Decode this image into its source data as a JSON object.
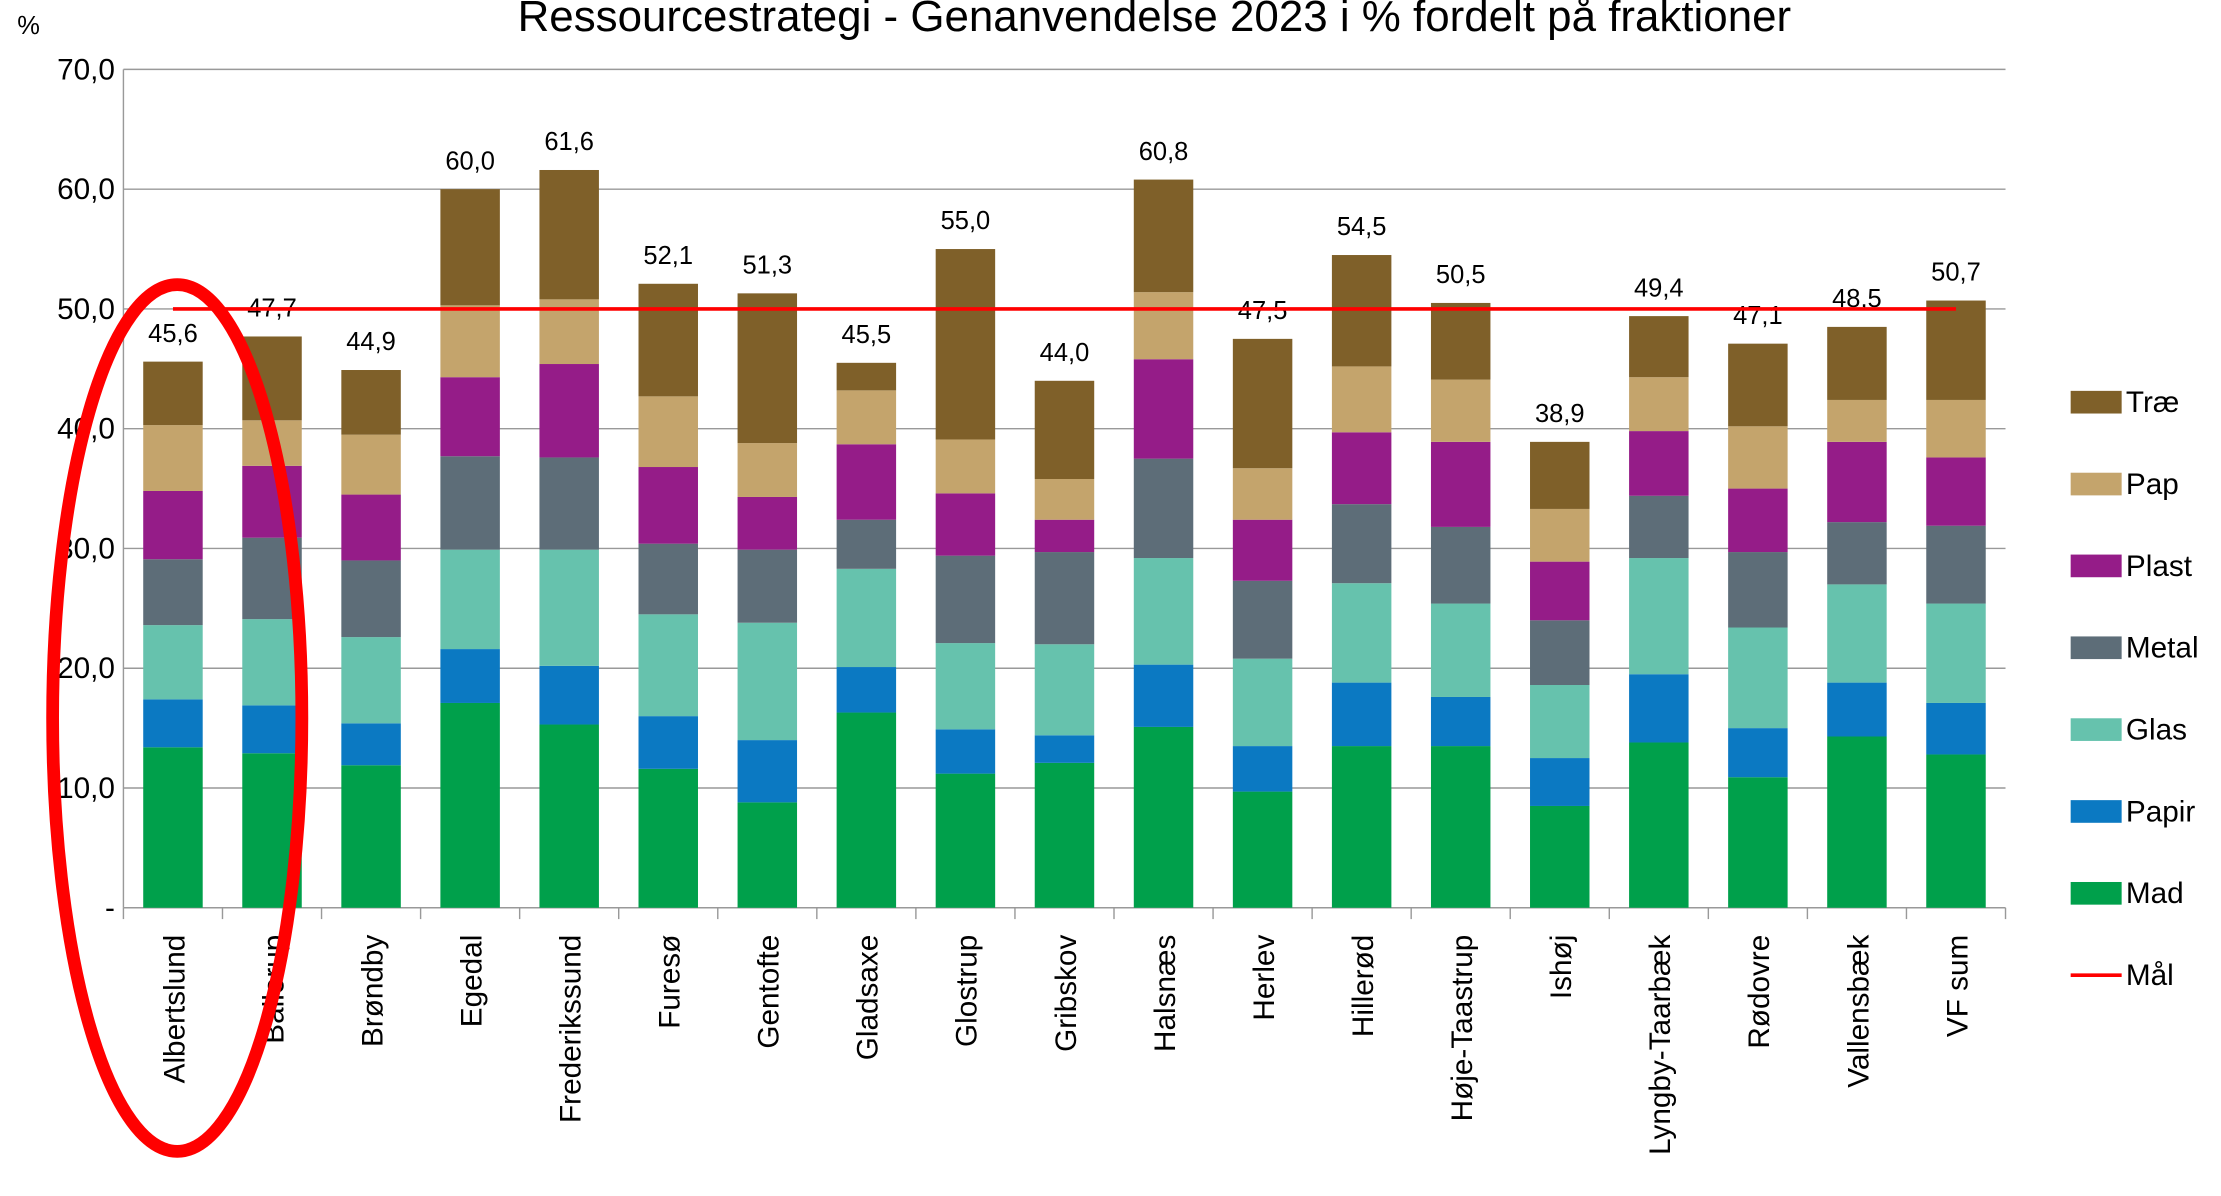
{
  "chart_data": {
    "type": "stacked-bar",
    "title": "Ressourcestrategi - Genanvendelse 2023 i % fordelt på fraktioner",
    "ylabel": "%",
    "categories": [
      "Albertslund",
      "Ballerup",
      "Brøndby",
      "Egedal",
      "Frederikssund",
      "Furesø",
      "Gentofte",
      "Gladsaxe",
      "Glostrup",
      "Gribskov",
      "Halsnæs",
      "Herlev",
      "Hillerød",
      "Høje-Taastrup",
      "Ishøj",
      "Lyngby-Taarbæk",
      "Rødovre",
      "Vallensbæk",
      "VF sum"
    ],
    "series": [
      {
        "name": "Mad",
        "color": "#00a04b",
        "values": [
          13.4,
          12.9,
          11.9,
          17.1,
          15.3,
          11.6,
          8.8,
          16.3,
          11.2,
          12.1,
          15.1,
          9.7,
          13.5,
          13.5,
          8.5,
          13.8,
          10.9,
          14.3,
          12.8
        ]
      },
      {
        "name": "Papir",
        "color": "#0b79c2",
        "values": [
          4.0,
          4.0,
          3.5,
          4.5,
          4.9,
          4.4,
          5.2,
          3.8,
          3.7,
          2.3,
          5.2,
          3.8,
          5.3,
          4.1,
          4.0,
          5.7,
          4.1,
          4.5,
          4.3
        ]
      },
      {
        "name": "Glas",
        "color": "#66c2ad",
        "values": [
          6.2,
          7.2,
          7.2,
          8.3,
          9.7,
          8.5,
          9.8,
          8.2,
          7.2,
          7.6,
          8.9,
          7.3,
          8.3,
          7.8,
          6.1,
          9.7,
          8.4,
          8.2,
          8.3
        ]
      },
      {
        "name": "Metal",
        "color": "#5d6d78",
        "values": [
          5.5,
          6.8,
          6.4,
          7.8,
          7.7,
          5.9,
          6.1,
          4.1,
          7.3,
          7.7,
          8.3,
          6.5,
          6.6,
          6.4,
          5.4,
          5.2,
          6.3,
          5.2,
          6.5
        ]
      },
      {
        "name": "Plast",
        "color": "#951c88",
        "values": [
          5.7,
          6.0,
          5.5,
          6.6,
          7.8,
          6.4,
          4.4,
          6.3,
          5.2,
          2.7,
          8.3,
          5.1,
          6.0,
          7.1,
          4.9,
          5.4,
          5.3,
          6.7,
          5.7
        ]
      },
      {
        "name": "Pap",
        "color": "#c4a46c",
        "values": [
          5.5,
          3.8,
          5.0,
          6.0,
          5.4,
          5.9,
          4.5,
          4.5,
          4.5,
          3.4,
          5.6,
          4.3,
          5.5,
          5.2,
          4.4,
          4.5,
          5.2,
          3.5,
          4.8
        ]
      },
      {
        "name": "Træ",
        "color": "#7f6029",
        "values": [
          5.3,
          7.0,
          5.4,
          9.7,
          10.8,
          9.4,
          12.5,
          2.3,
          15.9,
          8.2,
          9.4,
          10.8,
          9.3,
          6.4,
          5.6,
          5.1,
          6.9,
          6.1,
          8.3
        ]
      }
    ],
    "target": {
      "name": "Mål",
      "color": "#ff0000",
      "values": [
        50,
        50,
        50,
        50,
        50,
        50,
        50,
        50,
        50,
        50,
        50,
        50,
        50,
        50,
        50,
        50,
        50,
        50,
        50
      ]
    },
    "totals": [
      45.6,
      47.7,
      44.9,
      60.0,
      61.6,
      52.1,
      51.3,
      45.5,
      55.0,
      44.0,
      60.8,
      47.5,
      54.5,
      50.5,
      38.9,
      49.4,
      47.1,
      48.5,
      50.7
    ],
    "total_labels": [
      "45,6",
      "47,7",
      "44,9",
      "60,0",
      "61,6",
      "52,1",
      "51,3",
      "45,5",
      "55,0",
      "44,0",
      "60,8",
      "47,5",
      "54,5",
      "50,5",
      "38,9",
      "49,4",
      "47,1",
      "48,5",
      "50,7"
    ],
    "ylim": [
      0,
      70
    ],
    "yticks": [
      {
        "value": 0,
        "label": "-"
      },
      {
        "value": 10,
        "label": "10,0"
      },
      {
        "value": 20,
        "label": "20,0"
      },
      {
        "value": 30,
        "label": "30,0"
      },
      {
        "value": 40,
        "label": "40,0"
      },
      {
        "value": 50,
        "label": "50,0"
      },
      {
        "value": 60,
        "label": "60,0"
      },
      {
        "value": 70,
        "label": "70,0"
      }
    ],
    "grid": true,
    "legend": "right"
  }
}
